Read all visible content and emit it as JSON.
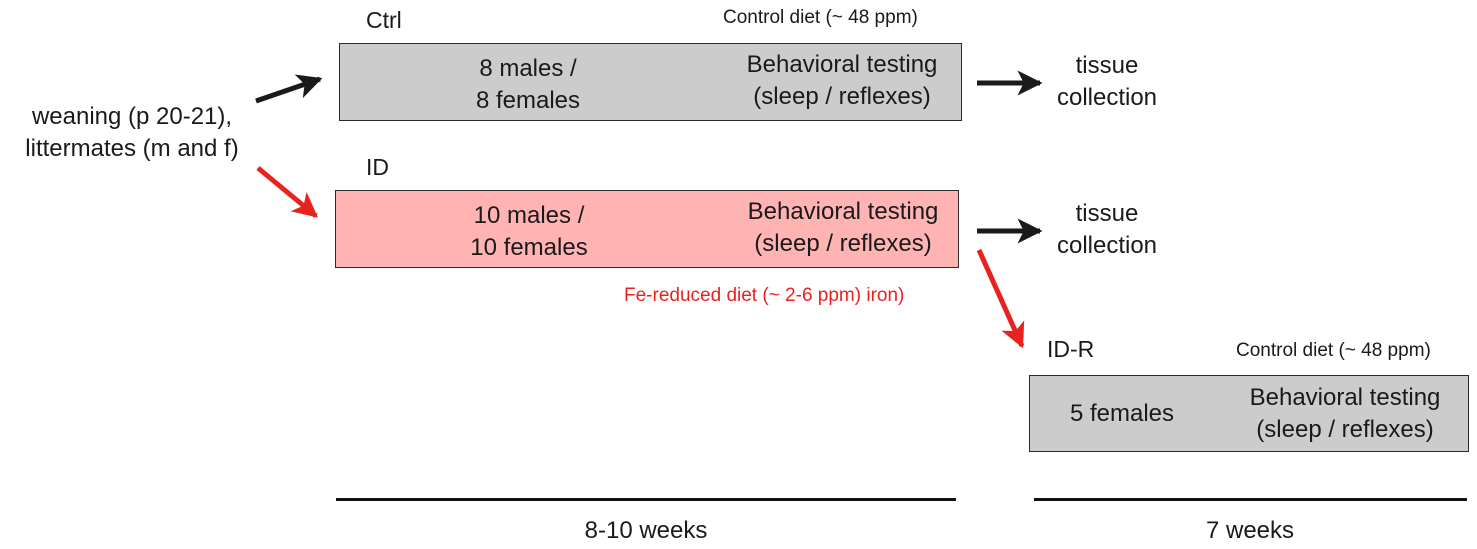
{
  "start": {
    "line1": "weaning (p 20-21),",
    "line2": "littermates (m and f)"
  },
  "ctrl": {
    "label": "Ctrl",
    "diet": "Control diet (~ 48 ppm)",
    "animals_line1": "8 males /",
    "animals_line2": "8 females",
    "testing_line1": "Behavioral testing",
    "testing_line2": "(sleep / reflexes)",
    "outcome_line1": "tissue",
    "outcome_line2": "collection",
    "fill": "#cccccc"
  },
  "id": {
    "label": "ID",
    "diet": "Fe-reduced diet (~ 2-6 ppm) iron)",
    "animals_line1": "10 males /",
    "animals_line2": "10 females",
    "testing_line1": "Behavioral testing",
    "testing_line2": "(sleep / reflexes)",
    "outcome_line1": "tissue",
    "outcome_line2": "collection",
    "fill": "#ffb3b3",
    "diet_color": "#e8231f"
  },
  "idr": {
    "label": "ID-R",
    "diet": "Control diet (~ 48 ppm)",
    "animals": "5 females",
    "testing_line1": "Behavioral testing",
    "testing_line2": "(sleep / reflexes)",
    "fill": "#cccccc"
  },
  "timeline": {
    "phase1": "8-10 weeks",
    "phase2": "7 weeks"
  },
  "colors": {
    "arrow_black": "#1a1a1a",
    "arrow_red": "#e8231f"
  }
}
